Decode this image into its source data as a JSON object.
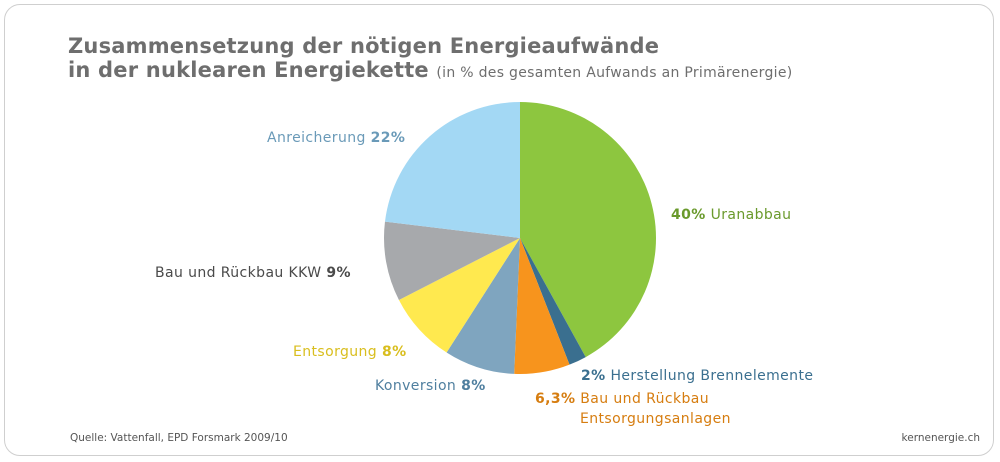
{
  "header": {
    "title_line1": "Zusammensetzung der nötigen Energieaufwände",
    "title_line2": "in der nuklearen Energiekette",
    "subtitle": "(in % des gesamten Aufwands an Primärenergie)"
  },
  "footer": {
    "source": "Quelle: Vattenfall, EPD Forsmark 2009/10",
    "brand": "kernenergie.ch"
  },
  "chart_data": {
    "type": "pie",
    "title": "Zusammensetzung der nötigen Energieaufwände in der nuklearen Energiekette",
    "subtitle": "(in % des gesamten Aufwands an Primärenergie)",
    "slices": [
      {
        "name": "Uranabbau",
        "value": 40,
        "label": "40%",
        "color": "#8dc63f"
      },
      {
        "name": "Herstellung Brennelemente",
        "value": 2,
        "label": "2%",
        "color": "#3a6f8f"
      },
      {
        "name": "Bau und Rückbau Entsorgungsanlagen",
        "name_line1": "Bau und Rückbau",
        "name_line2": "Entsorgungsanlagen",
        "value": 6.3,
        "label": "6,3%",
        "color": "#f7941d"
      },
      {
        "name": "Konversion",
        "value": 8,
        "label": "8%",
        "color": "#7fa5bf"
      },
      {
        "name": "Entsorgung",
        "value": 8,
        "label": "8%",
        "color": "#ffe94f"
      },
      {
        "name": "Bau und Rückbau KKW",
        "value": 9,
        "label": "9%",
        "color": "#a7a9ac"
      },
      {
        "name": "Anreicherung",
        "value": 22,
        "label": "22%",
        "color": "#a3d8f4"
      }
    ],
    "label_colors": {
      "Uranabbau": "#6a9a2c",
      "Herstellung Brennelemente": "#3a6f8f",
      "Bau und Rückbau Entsorgungsanlagen": "#d67d10",
      "Konversion": "#4f7f9f",
      "Entsorgung": "#d9be1e",
      "Bau und Rückbau KKW": "#4a4a4a",
      "Anreicherung": "#6a9ab8"
    }
  }
}
